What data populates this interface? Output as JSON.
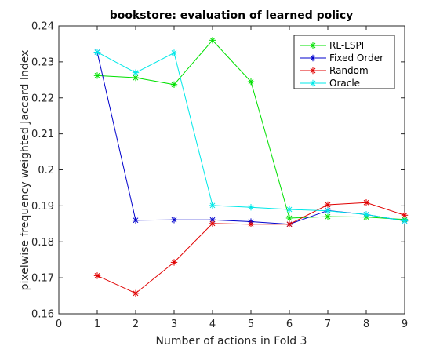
{
  "chart_data": {
    "type": "line",
    "title": "bookstore: evaluation of learned policy",
    "xlabel": "Number of actions in Fold 3",
    "ylabel": "pixelwise frequency weighted Jaccard Index",
    "xlim": [
      0,
      9
    ],
    "ylim": [
      0.16,
      0.24
    ],
    "xticks": [
      0,
      1,
      2,
      3,
      4,
      5,
      6,
      7,
      8,
      9
    ],
    "yticks": [
      0.16,
      0.17,
      0.18,
      0.19,
      0.2,
      0.21,
      0.22,
      0.23,
      0.24
    ],
    "ytick_labels": [
      "0.16",
      "0.17",
      "0.18",
      "0.19",
      "0.2",
      "0.21",
      "0.22",
      "0.23",
      "0.24"
    ],
    "grid": false,
    "legend_position": "top-right",
    "marker": "asterisk",
    "x": [
      1,
      2,
      3,
      4,
      5,
      6,
      7,
      8,
      9
    ],
    "series": [
      {
        "name": "RL-LSPI",
        "color": "#00e000",
        "values": [
          0.2262,
          0.2256,
          0.2237,
          0.236,
          0.2245,
          0.1866,
          0.187,
          0.1869,
          0.1862
        ]
      },
      {
        "name": "Fixed Order",
        "color": "#0000cc",
        "values": [
          0.2327,
          0.186,
          0.1861,
          0.1861,
          0.1856,
          0.1849,
          0.1887,
          0.1876,
          0.1858
        ]
      },
      {
        "name": "Random",
        "color": "#e00000",
        "values": [
          0.1706,
          0.1657,
          0.1743,
          0.1851,
          0.1849,
          0.1849,
          0.1903,
          0.1909,
          0.1874
        ]
      },
      {
        "name": "Oracle",
        "color": "#00e8e8",
        "values": [
          0.2327,
          0.227,
          0.2325,
          0.1901,
          0.1896,
          0.189,
          0.1886,
          0.1876,
          0.1858
        ]
      }
    ]
  }
}
